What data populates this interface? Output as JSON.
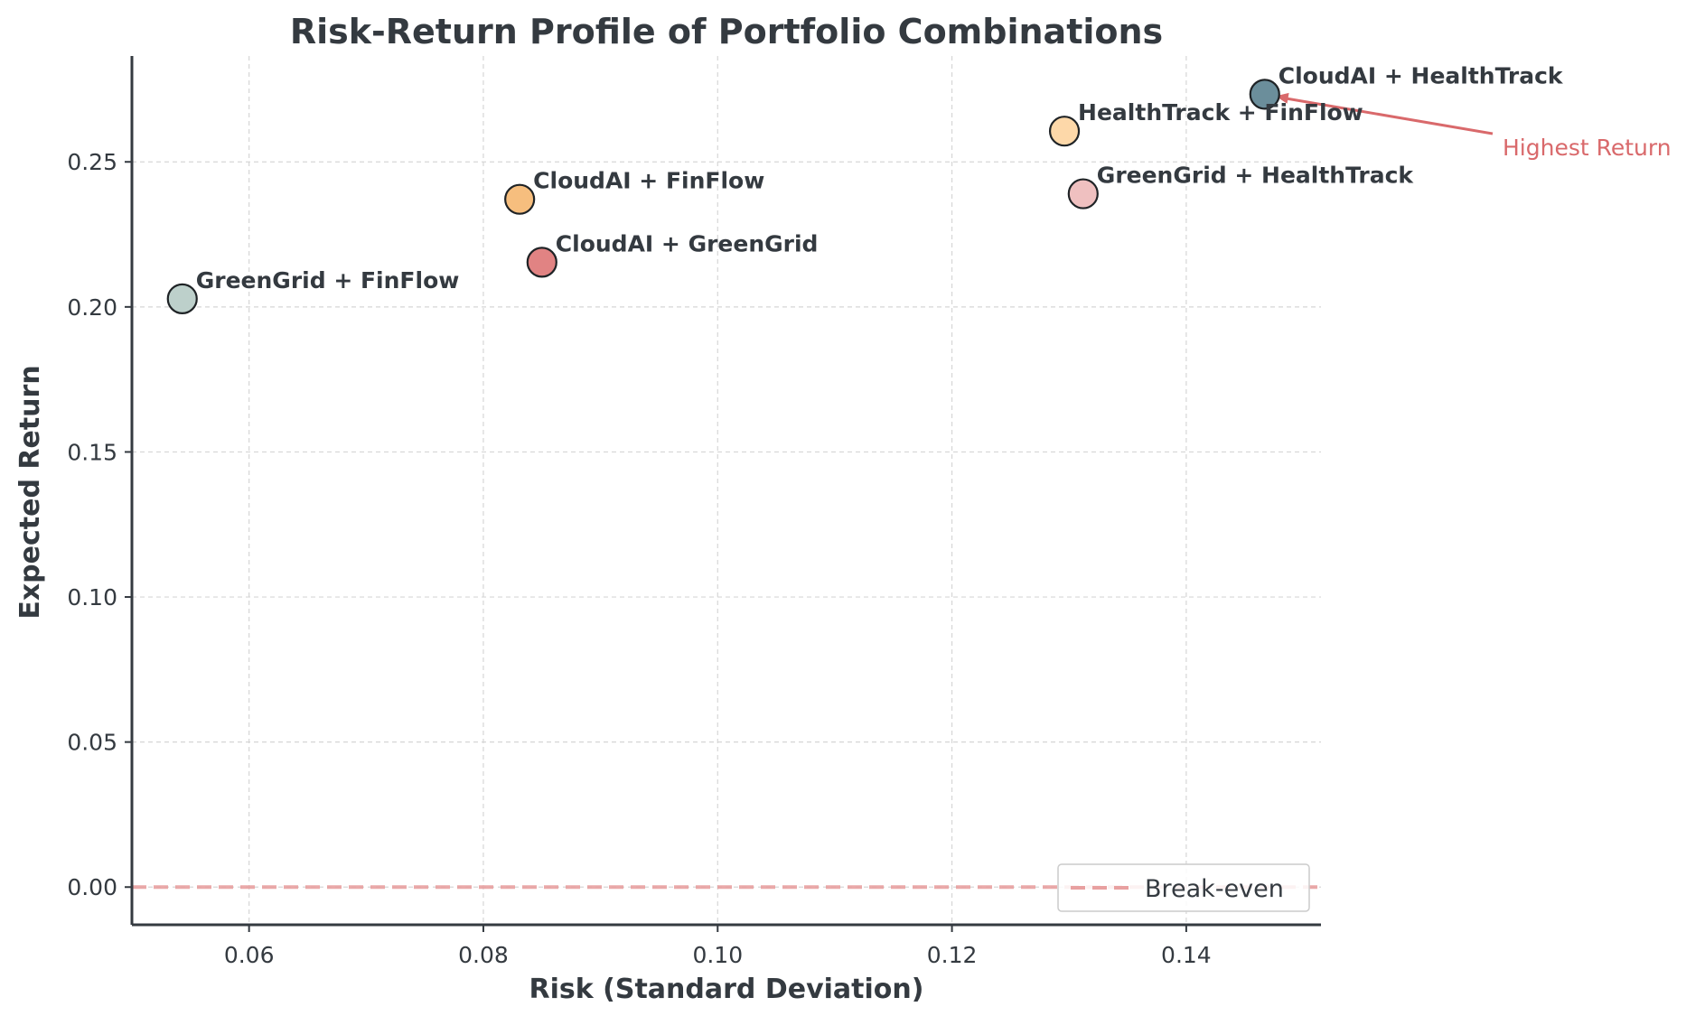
{
  "chart_data": {
    "type": "scatter",
    "title": "Risk-Return Profile of Portfolio Combinations",
    "xlabel": "Risk (Standard Deviation)",
    "ylabel": "Expected Return",
    "xlim": [
      0.05,
      0.1515
    ],
    "ylim": [
      -0.013,
      0.2865
    ],
    "xticks": [
      0.06,
      0.08,
      0.1,
      0.12,
      0.14
    ],
    "xtick_labels": [
      "0.06",
      "0.08",
      "0.10",
      "0.12",
      "0.14"
    ],
    "yticks": [
      0.0,
      0.05,
      0.1,
      0.15,
      0.2,
      0.25
    ],
    "ytick_labels": [
      "0.00",
      "0.05",
      "0.10",
      "0.15",
      "0.20",
      "0.25"
    ],
    "grid": true,
    "points": [
      {
        "label": "CloudAI + HealthTrack",
        "x": 0.1467,
        "y": 0.2733,
        "color": "#6b8e9b"
      },
      {
        "label": "HealthTrack + FinFlow",
        "x": 0.1296,
        "y": 0.2606,
        "color": "#fdd8a9"
      },
      {
        "label": "GreenGrid + HealthTrack",
        "x": 0.1312,
        "y": 0.239,
        "color": "#efc0c0"
      },
      {
        "label": "CloudAI + FinFlow",
        "x": 0.0831,
        "y": 0.2371,
        "color": "#f6be7e"
      },
      {
        "label": "CloudAI + GreenGrid",
        "x": 0.085,
        "y": 0.2154,
        "color": "#e18383"
      },
      {
        "label": "GreenGrid + FinFlow",
        "x": 0.0543,
        "y": 0.2028,
        "color": "#bdd0cb"
      }
    ],
    "reference_line": {
      "y": 0.0,
      "label": "Break-even",
      "color": "#e8a0a0",
      "style": "dashed"
    },
    "annotation": {
      "text": "Highest Return",
      "target_label": "CloudAI + HealthTrack",
      "color": "#d9696b"
    },
    "legend": {
      "placement": "lower-right",
      "entries": [
        "Break-even"
      ]
    }
  }
}
